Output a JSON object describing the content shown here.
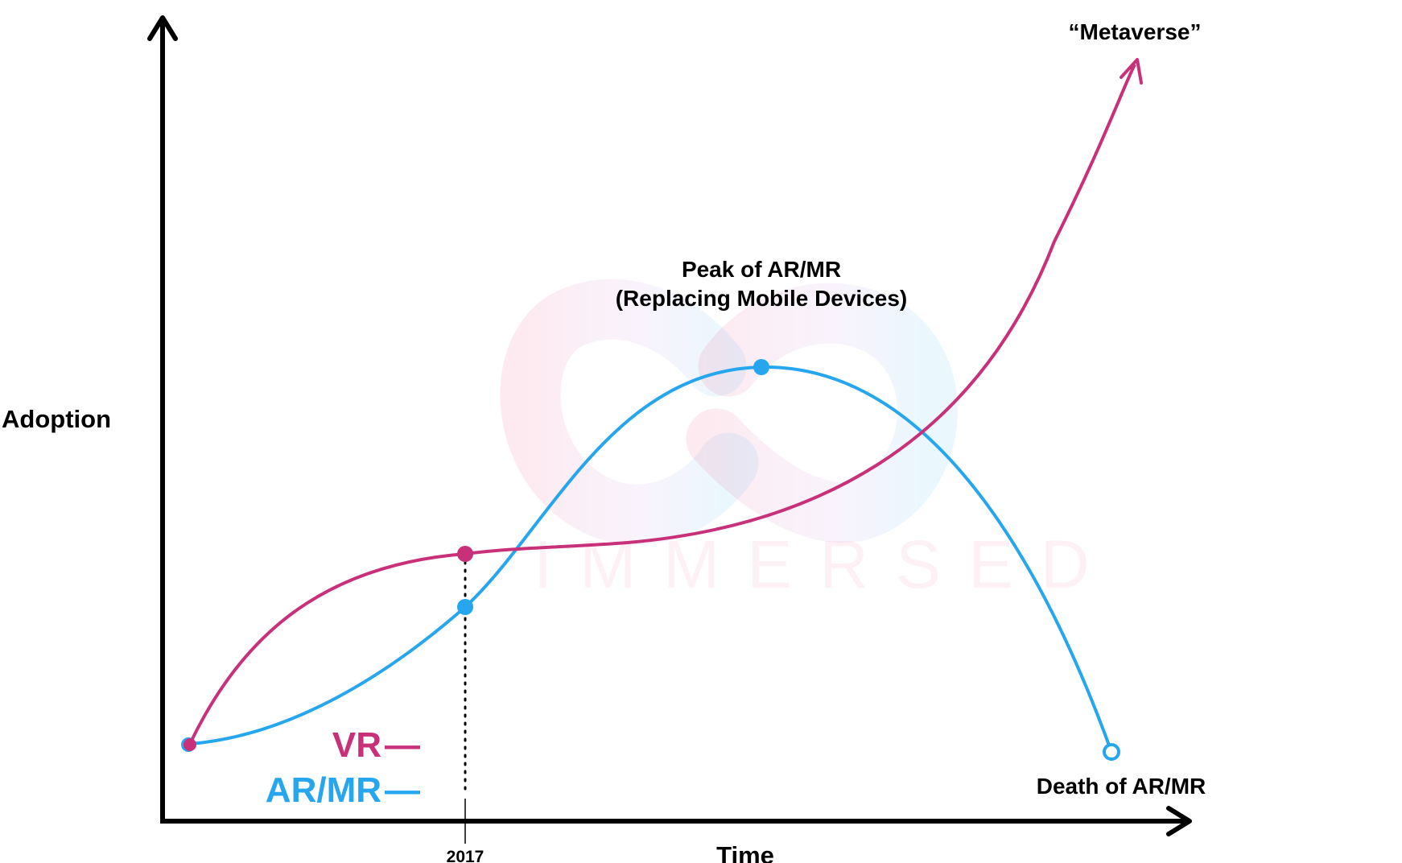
{
  "axes": {
    "y_label": "Adoption",
    "x_label": "Time",
    "x_tick": "2017"
  },
  "legend": {
    "vr_label": "VR",
    "ar_label": "AR/MR",
    "dash": "—"
  },
  "annotations": {
    "peak_line1": "Peak of AR/MR",
    "peak_line2": "(Replacing Mobile Devices)",
    "metaverse": "“Metaverse”",
    "death": "Death of AR/MR"
  },
  "watermark": {
    "text": "IMMERSED",
    "logo": "infinity-logo"
  },
  "colors": {
    "vr": "#c8317a",
    "ar": "#26a6ee",
    "axis": "#000000",
    "background": "#ffffff"
  }
}
